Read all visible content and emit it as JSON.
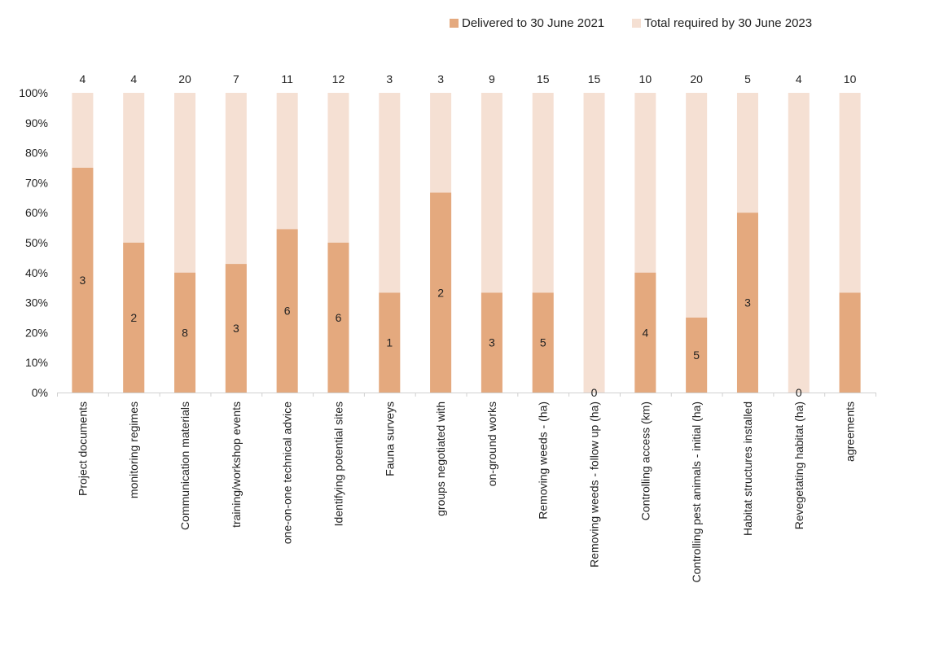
{
  "chart_data": {
    "type": "bar",
    "stacking": "100%",
    "legend": {
      "position": "top-right",
      "entries": [
        {
          "name": "Delivered to 30 June 2021",
          "color": "#e4a97e"
        },
        {
          "name": "Total required by 30 June 2023",
          "color": "#f5e0d3"
        }
      ]
    },
    "y_axis": {
      "ticks": [
        "0%",
        "10%",
        "20%",
        "30%",
        "40%",
        "50%",
        "60%",
        "70%",
        "80%",
        "90%",
        "100%"
      ],
      "ylim": [
        0,
        100
      ],
      "grid": false
    },
    "categories": [
      "Project documents",
      "monitoring regimes",
      "Communication materials",
      "training/workshop events",
      "one-on-one technical advice",
      "Identifying  potential sites",
      "Fauna surveys",
      "groups negotiated with",
      "on-ground works",
      "Removing weeds -  (ha)",
      "Removing weeds - follow up (ha)",
      "Controlling access (km)",
      "Controlling pest animals - initial (ha)",
      "Habitat structures installed",
      "Revegetating habitat (ha)",
      "agreements"
    ],
    "totals": [
      4,
      4,
      20,
      7,
      11,
      12,
      3,
      3,
      9,
      15,
      15,
      10,
      20,
      5,
      4,
      10
    ],
    "total_labels": [
      "4",
      "4",
      "20",
      "7",
      "11",
      "12",
      "3",
      "3",
      "9",
      "15",
      "15",
      "10",
      "20",
      "5",
      "4",
      "10"
    ],
    "series": [
      {
        "name": "Delivered to 30 June 2021",
        "color": "#e4a97e",
        "values": [
          3,
          2,
          8,
          3,
          6,
          6,
          1,
          2,
          3,
          5,
          0,
          4,
          5,
          3,
          0,
          3.33
        ],
        "percent": [
          75,
          50,
          40,
          42.9,
          54.5,
          50,
          33.3,
          66.7,
          33.3,
          33.3,
          0,
          40,
          25,
          60,
          0,
          33.3
        ],
        "labels": [
          "3",
          "2",
          "8",
          "3",
          "6",
          "6",
          "1",
          "2",
          "3",
          "5",
          "0",
          "4",
          "5",
          "3",
          "0",
          ""
        ]
      },
      {
        "name": "Total required by 30 June 2023",
        "color": "#f5e0d3",
        "percent": [
          100,
          100,
          100,
          100,
          100,
          100,
          100,
          100,
          100,
          100,
          100,
          100,
          100,
          100,
          100,
          100
        ]
      }
    ]
  }
}
